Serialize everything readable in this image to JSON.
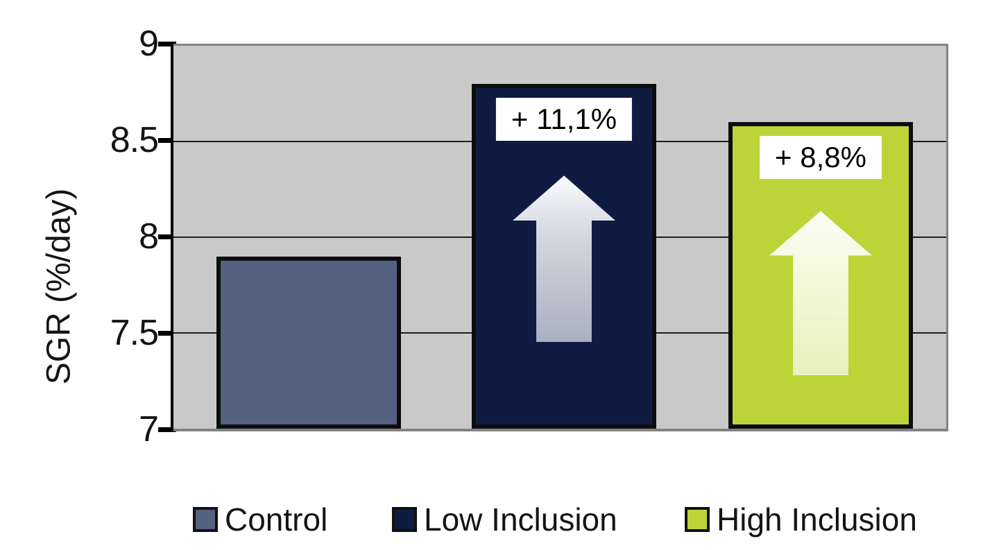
{
  "chart_data": {
    "type": "bar",
    "categories": [
      "Control",
      "Low Inclusion",
      "High Inclusion"
    ],
    "values": [
      7.9,
      8.8,
      8.6
    ],
    "title": "",
    "xlabel": "",
    "ylabel": "SGR (%/day)",
    "ylim": [
      7,
      9
    ],
    "yticks": [
      9,
      8.5,
      8,
      7.5,
      7
    ],
    "ytick_labels": [
      "9",
      "8.5",
      "8",
      "7.5",
      "7"
    ],
    "grid": true,
    "legend_position": "bottom",
    "series_colors": [
      "#546181",
      "#101b42",
      "#bcd437"
    ],
    "plot_background": "#c9c9c9",
    "annotations": [
      {
        "bar": "Low Inclusion",
        "text": "+ 11,1%",
        "icon": "up-arrow"
      },
      {
        "bar": "High Inclusion",
        "text": "+ 8,8%",
        "icon": "up-arrow"
      }
    ]
  },
  "legend": {
    "items": [
      {
        "label": "Control",
        "color": "#546181"
      },
      {
        "label": "Low Inclusion",
        "color": "#101b42"
      },
      {
        "label": "High Inclusion",
        "color": "#bcd437"
      }
    ]
  }
}
